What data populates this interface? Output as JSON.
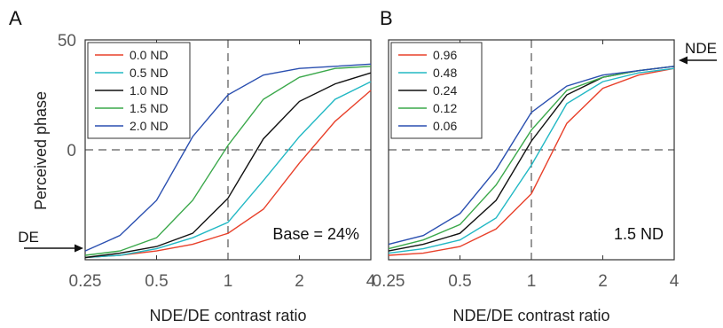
{
  "chart_data": [
    {
      "type": "line",
      "panel_label": "A",
      "xlabel": "NDE/DE contrast ratio",
      "ylabel": "Perceived phase",
      "x_scale": "log",
      "x": [
        0.25,
        0.35,
        0.5,
        0.71,
        1,
        1.41,
        2,
        2.83,
        4
      ],
      "xticks": [
        "0.25",
        "0.5",
        "1",
        "2",
        "4"
      ],
      "xtick_values": [
        0.25,
        0.5,
        1,
        2,
        4
      ],
      "yticks": [
        "0",
        "50"
      ],
      "ytick_values": [
        0,
        50
      ],
      "ylim": [
        -50,
        50
      ],
      "annotation": "Base = 24%",
      "left_marker": "DE",
      "legend_position": "top-left",
      "series": [
        {
          "name": "0.0 ND",
          "color": "#e8402a",
          "values": [
            -49,
            -48,
            -46,
            -43,
            -38,
            -27,
            -6,
            13,
            27
          ]
        },
        {
          "name": "0.5 ND",
          "color": "#22b8c4",
          "values": [
            -49,
            -48,
            -45,
            -40,
            -33,
            -14,
            6,
            23,
            31
          ]
        },
        {
          "name": "1.0 ND",
          "color": "#111111",
          "values": [
            -49,
            -47,
            -44,
            -38,
            -22,
            5,
            22,
            30,
            35
          ]
        },
        {
          "name": "1.5 ND",
          "color": "#3aa84a",
          "values": [
            -48,
            -46,
            -40,
            -23,
            2,
            23,
            33,
            37,
            38
          ]
        },
        {
          "name": "2.0 ND",
          "color": "#2a4fb0",
          "values": [
            -46,
            -39,
            -23,
            6,
            25,
            34,
            37,
            38,
            39
          ]
        }
      ]
    },
    {
      "type": "line",
      "panel_label": "B",
      "xlabel": "NDE/DE contrast ratio",
      "ylabel": "",
      "x_scale": "log",
      "x": [
        0.25,
        0.35,
        0.5,
        0.71,
        1,
        1.41,
        2,
        2.83,
        4
      ],
      "xticks": [
        "0.25",
        "0.5",
        "1",
        "2",
        "4"
      ],
      "xtick_values": [
        0.25,
        0.5,
        1,
        2,
        4
      ],
      "yticks": [],
      "ylim": [
        -50,
        50
      ],
      "annotation": "1.5 ND",
      "right_marker": "NDE",
      "legend_position": "top-left",
      "series": [
        {
          "name": "0.96",
          "color": "#e8402a",
          "values": [
            -48,
            -47,
            -44,
            -36,
            -20,
            12,
            28,
            34,
            37
          ]
        },
        {
          "name": "0.48",
          "color": "#22b8c4",
          "values": [
            -47,
            -45,
            -41,
            -31,
            -7,
            21,
            31,
            35,
            37
          ]
        },
        {
          "name": "0.24",
          "color": "#111111",
          "values": [
            -46,
            -43,
            -38,
            -23,
            4,
            25,
            33,
            36,
            38
          ]
        },
        {
          "name": "0.12",
          "color": "#3aa84a",
          "values": [
            -45,
            -41,
            -34,
            -16,
            9,
            27,
            33,
            36,
            38
          ]
        },
        {
          "name": "0.06",
          "color": "#2a4fb0",
          "values": [
            -43,
            -39,
            -29,
            -9,
            17,
            29,
            34,
            36,
            38
          ]
        }
      ]
    }
  ]
}
